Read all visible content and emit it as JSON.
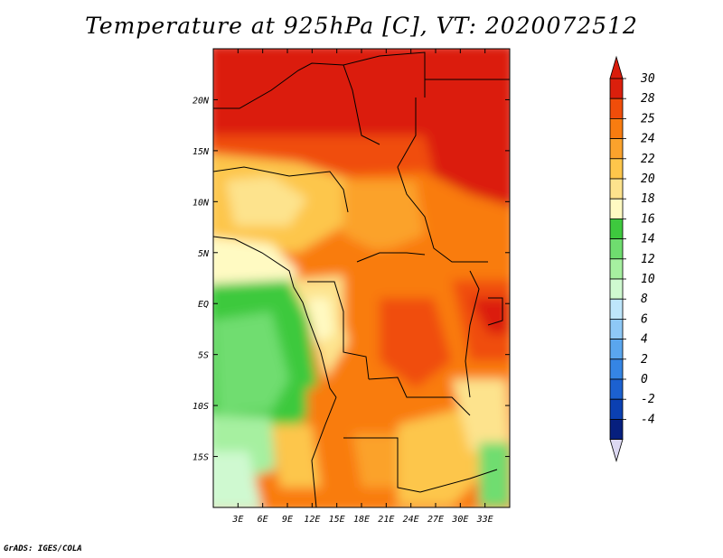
{
  "title": "Temperature at 925hPa [C], VT: 2020072512",
  "footer": "GrADS: IGES/COLA",
  "map": {
    "lon_range": [
      0,
      36
    ],
    "lat_range": [
      -20,
      25
    ],
    "lon_ticks": [
      "3E",
      "6E",
      "9E",
      "12E",
      "15E",
      "18E",
      "21E",
      "24E",
      "27E",
      "30E",
      "33E"
    ],
    "lon_tick_values": [
      3,
      6,
      9,
      12,
      15,
      18,
      21,
      24,
      27,
      30,
      33
    ],
    "lat_ticks": [
      "20N",
      "15N",
      "10N",
      "5N",
      "EQ",
      "5S",
      "10S",
      "15S"
    ],
    "lat_tick_values": [
      20,
      15,
      10,
      5,
      0,
      -5,
      -10,
      -15
    ]
  },
  "colorbar": {
    "levels": [
      "30",
      "28",
      "25",
      "24",
      "22",
      "20",
      "18",
      "16",
      "14",
      "12",
      "10",
      "8",
      "6",
      "4",
      "2",
      "0",
      "-2",
      "-4"
    ],
    "colors": [
      "#db1f0c",
      "#f04d0a",
      "#f97c10",
      "#fba22c",
      "#fdc64b",
      "#fde38d",
      "#fffac2",
      "#3ec93e",
      "#6fdd6f",
      "#a6f0a0",
      "#cff9d0",
      "#bee6fb",
      "#8ec8f6",
      "#5aa6ee",
      "#3585e4",
      "#1c61d0",
      "#0b40b2",
      "#061f7e",
      "#11004e"
    ],
    "top_arrow_color": "#d91c0c",
    "bottom_arrow_color": "#dcd8f2"
  }
}
